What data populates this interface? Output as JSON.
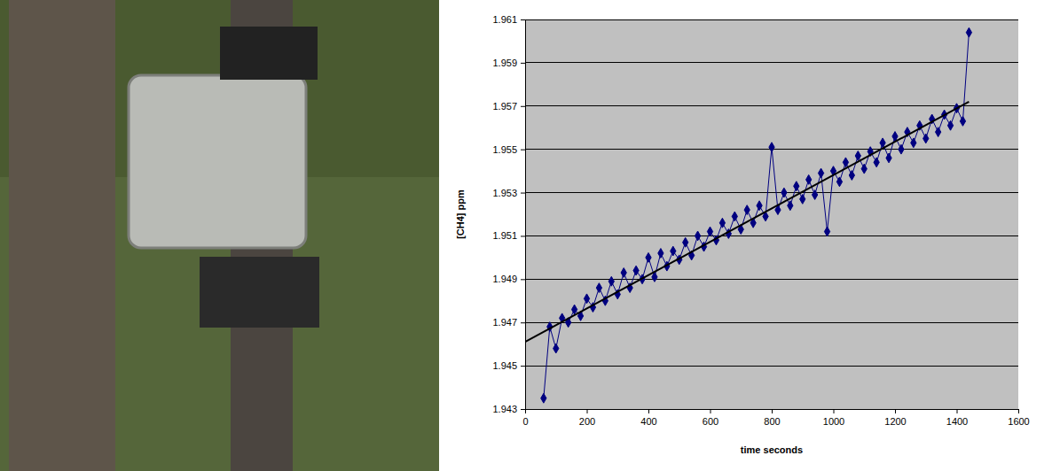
{
  "chart_data": {
    "type": "line",
    "x_label": "time seconds",
    "y_label": "[CH4] ppm",
    "xlim": [
      0,
      1600
    ],
    "xticks": [
      0,
      200,
      400,
      600,
      800,
      1000,
      1200,
      1400,
      1600
    ],
    "ylim": [
      1.943,
      1.961
    ],
    "yticks": [
      1.943,
      1.945,
      1.947,
      1.949,
      1.951,
      1.953,
      1.955,
      1.957,
      1.959,
      1.961
    ],
    "grid": true,
    "series": [
      {
        "type": "line",
        "color": "#000080",
        "marker": "diamond",
        "line_style": "solid",
        "x": [
          60,
          80,
          100,
          120,
          140,
          160,
          180,
          200,
          220,
          240,
          260,
          280,
          300,
          320,
          340,
          360,
          380,
          400,
          420,
          440,
          460,
          480,
          500,
          520,
          540,
          560,
          580,
          600,
          620,
          640,
          660,
          680,
          700,
          720,
          740,
          760,
          780,
          800,
          820,
          840,
          860,
          880,
          900,
          920,
          940,
          960,
          980,
          1000,
          1020,
          1040,
          1060,
          1080,
          1100,
          1120,
          1140,
          1160,
          1180,
          1200,
          1220,
          1240,
          1260,
          1280,
          1300,
          1320,
          1340,
          1360,
          1380,
          1400,
          1420,
          1440
        ],
        "values": [
          1.9435,
          1.9468,
          1.9458,
          1.9472,
          1.947,
          1.9476,
          1.9473,
          1.9481,
          1.9477,
          1.9486,
          1.948,
          1.9489,
          1.9483,
          1.9493,
          1.9486,
          1.9494,
          1.949,
          1.95,
          1.9491,
          1.9502,
          1.9496,
          1.9503,
          1.9499,
          1.9507,
          1.9501,
          1.951,
          1.9505,
          1.9512,
          1.9508,
          1.9516,
          1.9511,
          1.9519,
          1.9513,
          1.9522,
          1.9516,
          1.9524,
          1.9519,
          1.9551,
          1.9522,
          1.953,
          1.9524,
          1.9533,
          1.9527,
          1.9536,
          1.9529,
          1.9539,
          1.9512,
          1.954,
          1.9535,
          1.9544,
          1.9538,
          1.9547,
          1.9541,
          1.9549,
          1.9544,
          1.9553,
          1.9546,
          1.9556,
          1.955,
          1.9558,
          1.9553,
          1.9561,
          1.9555,
          1.9564,
          1.9558,
          1.9566,
          1.9561,
          1.9569,
          1.9563,
          1.9604
        ]
      },
      {
        "type": "line",
        "color": "#000000",
        "marker": "none",
        "line_style": "solid",
        "x": [
          0,
          1440
        ],
        "values": [
          1.9461,
          1.9572
        ]
      }
    ]
  }
}
